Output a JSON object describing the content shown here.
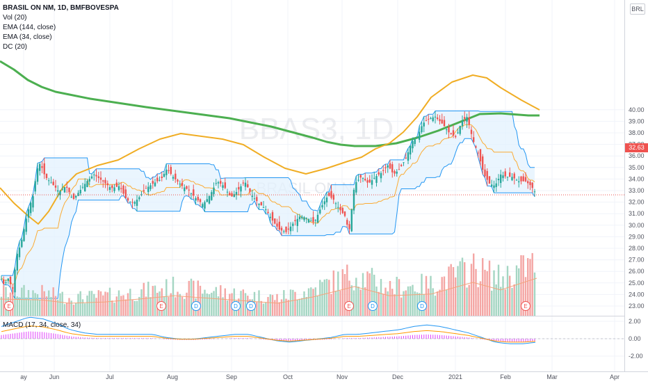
{
  "legend": {
    "title": "BRASIL ON NM, 1D, BMFBOVESPA",
    "vol": "Vol (20)",
    "ema144": "EMA (144, close)",
    "ema34": "EMA (34, close)",
    "dc": "DC (20)"
  },
  "macd_legend": "MACD (17, 34, close, 34)",
  "currency": "BRL",
  "watermark": {
    "symbol": "BBAS3, 1D",
    "name": "BRASIL ON NM"
  },
  "last_price": "32.63",
  "colors": {
    "up": "#26a69a",
    "down": "#ef5350",
    "ema144": "#4caf50",
    "ema34": "#f0ad24",
    "dc": "#2196f3",
    "dc_fill": "#e3f2fd",
    "vol_up": "#a5d6c3",
    "vol_down": "#f4a6a4",
    "vol_ma": "#f4a37a",
    "macd": "#2196f3",
    "signal": "#ff9800",
    "hist": "#e040fb"
  },
  "chart_data": [
    {
      "type": "candlestick",
      "title": "BRASIL ON NM, 1D, BMFBOVESPA",
      "x_ticks": [
        "ay",
        "Jun",
        "Jul",
        "Aug",
        "Sep",
        "Oct",
        "Nov",
        "Dec",
        "2021",
        "Feb",
        "Mar",
        "Apr"
      ],
      "y_ticks": [
        "23.00",
        "24.00",
        "25.00",
        "26.00",
        "27.00",
        "28.00",
        "29.00",
        "30.00",
        "31.00",
        "32.00",
        "33.00",
        "34.00",
        "35.00",
        "36.00",
        "37.00",
        "38.00",
        "39.00",
        "40.00"
      ],
      "ylim": [
        22.4,
        40.8
      ],
      "grid": true,
      "close_path": [
        [
          0,
          25.6
        ],
        [
          6,
          24.8
        ],
        [
          12,
          25.4
        ],
        [
          18,
          24.4
        ],
        [
          24,
          27.4
        ],
        [
          30,
          28.4
        ],
        [
          40,
          31.2
        ],
        [
          48,
          32.6
        ],
        [
          53,
          34.8
        ],
        [
          58,
          35.4
        ],
        [
          65,
          34.2
        ],
        [
          75,
          33.6
        ],
        [
          85,
          32.9
        ],
        [
          95,
          33.4
        ],
        [
          105,
          32.2
        ],
        [
          115,
          33.0
        ],
        [
          125,
          33.8
        ],
        [
          135,
          34.4
        ],
        [
          148,
          33.8
        ],
        [
          160,
          33.2
        ],
        [
          172,
          33.4
        ],
        [
          182,
          32.2
        ],
        [
          192,
          31.9
        ],
        [
          200,
          32.4
        ],
        [
          210,
          33.2
        ],
        [
          220,
          33.6
        ],
        [
          232,
          34.0
        ],
        [
          240,
          34.9
        ],
        [
          250,
          34.1
        ],
        [
          262,
          33.4
        ],
        [
          272,
          33.0
        ],
        [
          282,
          32.3
        ],
        [
          292,
          31.8
        ],
        [
          302,
          32.6
        ],
        [
          312,
          33.8
        ],
        [
          322,
          33.4
        ],
        [
          332,
          32.4
        ],
        [
          342,
          33.0
        ],
        [
          352,
          33.8
        ],
        [
          362,
          32.6
        ],
        [
          372,
          31.9
        ],
        [
          382,
          31.4
        ],
        [
          392,
          30.4
        ],
        [
          402,
          29.6
        ],
        [
          412,
          29.4
        ],
        [
          422,
          30.2
        ],
        [
          432,
          30.8
        ],
        [
          442,
          30.6
        ],
        [
          452,
          30.2
        ],
        [
          462,
          31.6
        ],
        [
          472,
          32.6
        ],
        [
          480,
          32.2
        ],
        [
          488,
          31.4
        ],
        [
          496,
          30.8
        ],
        [
          502,
          29.4
        ],
        [
          510,
          33.6
        ],
        [
          520,
          34.2
        ],
        [
          530,
          33.6
        ],
        [
          540,
          34.2
        ],
        [
          550,
          34.6
        ],
        [
          558,
          35.2
        ],
        [
          566,
          34.4
        ],
        [
          574,
          34.8
        ],
        [
          584,
          35.8
        ],
        [
          592,
          37.2
        ],
        [
          600,
          37.6
        ],
        [
          608,
          38.8
        ],
        [
          616,
          39.2
        ],
        [
          626,
          39.4
        ],
        [
          636,
          38.8
        ],
        [
          646,
          38.0
        ],
        [
          656,
          37.6
        ],
        [
          664,
          39.0
        ],
        [
          672,
          39.4
        ],
        [
          680,
          37.4
        ],
        [
          688,
          36.2
        ],
        [
          696,
          34.4
        ],
        [
          704,
          33.6
        ],
        [
          712,
          33.4
        ],
        [
          720,
          34.4
        ],
        [
          728,
          34.2
        ],
        [
          736,
          34.2
        ],
        [
          746,
          33.8
        ],
        [
          756,
          33.8
        ],
        [
          764,
          33.4
        ],
        [
          772,
          32.63
        ]
      ],
      "volume_path": [
        [
          0,
          0.4
        ],
        [
          60,
          0.38
        ],
        [
          100,
          0.3
        ],
        [
          150,
          0.33
        ],
        [
          200,
          0.4
        ],
        [
          250,
          0.48
        ],
        [
          300,
          0.42
        ],
        [
          350,
          0.36
        ],
        [
          400,
          0.3
        ],
        [
          450,
          0.45
        ],
        [
          510,
          0.7
        ],
        [
          560,
          0.48
        ],
        [
          620,
          0.52
        ],
        [
          680,
          0.8
        ],
        [
          720,
          0.62
        ],
        [
          772,
          0.9
        ]
      ],
      "ema144_path": [
        [
          0,
          88
        ],
        [
          20,
          100
        ],
        [
          40,
          115
        ],
        [
          60,
          125
        ],
        [
          80,
          132
        ],
        [
          100,
          136
        ],
        [
          130,
          142
        ],
        [
          170,
          148
        ],
        [
          210,
          154
        ],
        [
          240,
          158
        ],
        [
          270,
          162
        ],
        [
          300,
          166
        ],
        [
          330,
          170
        ],
        [
          360,
          176
        ],
        [
          390,
          182
        ],
        [
          420,
          190
        ],
        [
          450,
          198
        ],
        [
          470,
          204
        ],
        [
          490,
          208
        ],
        [
          510,
          210
        ],
        [
          540,
          210
        ],
        [
          570,
          206
        ],
        [
          600,
          198
        ],
        [
          630,
          188
        ],
        [
          660,
          176
        ],
        [
          690,
          164
        ],
        [
          720,
          163
        ],
        [
          760,
          166
        ],
        [
          776,
          166
        ]
      ],
      "ema34_path": [
        [
          0,
          270
        ],
        [
          20,
          292
        ],
        [
          40,
          310
        ],
        [
          55,
          322
        ],
        [
          70,
          304
        ],
        [
          90,
          270
        ],
        [
          110,
          250
        ],
        [
          140,
          238
        ],
        [
          170,
          230
        ],
        [
          200,
          214
        ],
        [
          230,
          200
        ],
        [
          260,
          192
        ],
        [
          290,
          196
        ],
        [
          320,
          200
        ],
        [
          350,
          208
        ],
        [
          380,
          226
        ],
        [
          410,
          242
        ],
        [
          440,
          250
        ],
        [
          470,
          242
        ],
        [
          500,
          232
        ],
        [
          520,
          226
        ],
        [
          540,
          214
        ],
        [
          560,
          206
        ],
        [
          580,
          190
        ],
        [
          600,
          168
        ],
        [
          620,
          140
        ],
        [
          650,
          118
        ],
        [
          680,
          108
        ],
        [
          700,
          112
        ],
        [
          720,
          126
        ],
        [
          750,
          144
        ],
        [
          776,
          158
        ]
      ],
      "macd_hist": [
        0.6,
        0.9,
        1.2,
        1.1,
        0.8,
        0.4,
        0.2,
        0.1,
        0.1,
        0.1,
        0.1,
        0.1,
        -0.1,
        -0.2,
        -0.2,
        -0.1,
        0.0,
        0.1,
        0.1,
        -0.1,
        -0.3,
        -0.4,
        -0.3,
        -0.2,
        -0.1,
        0.1,
        0.1,
        0.2,
        0.3,
        0.4,
        0.6,
        0.7,
        0.6,
        0.4,
        0.2,
        -0.1,
        -0.4,
        -0.5,
        -0.5,
        -0.4
      ]
    }
  ],
  "events": [
    {
      "x": 13,
      "label": "E",
      "kind": "earnings"
    },
    {
      "x": 232,
      "label": "E",
      "kind": "earnings"
    },
    {
      "x": 282,
      "label": "D",
      "kind": "dividend"
    },
    {
      "x": 339,
      "label": "D",
      "kind": "dividend"
    },
    {
      "x": 361,
      "label": "D",
      "kind": "dividend"
    },
    {
      "x": 502,
      "label": "E",
      "kind": "earnings"
    },
    {
      "x": 536,
      "label": "D",
      "kind": "dividend"
    },
    {
      "x": 607,
      "label": "D",
      "kind": "dividend"
    },
    {
      "x": 756,
      "label": "E",
      "kind": "earnings"
    }
  ]
}
